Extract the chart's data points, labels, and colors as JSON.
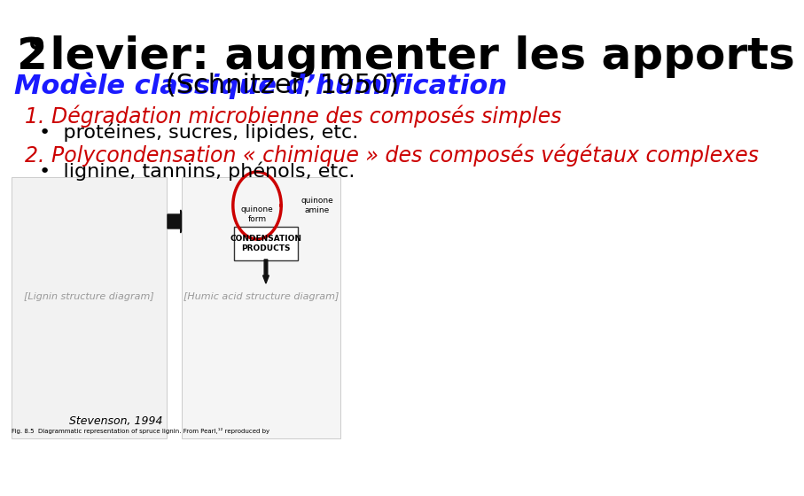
{
  "bg_color": "#ffffff",
  "title_color": "#000000",
  "title_fontsize": 36,
  "title_superscript_fontsize": 18,
  "title_rest": " levier: augmenter les apports",
  "subtitle_bold": "Modèle classique d’humification",
  "subtitle_normal": " (Schnitzer, 1950)",
  "subtitle_fontsize": 22,
  "subtitle_color_bold": "#1a1aff",
  "subtitle_color_normal": "#000000",
  "item1_header": "1. Dégradation microbienne des composés simples",
  "item1_bullet": "•  protéines, sucres, lipides, etc.",
  "item2_header": "2. Polycondensation « chimique » des composés végétaux complexes",
  "item2_bullet": "•  lignine, tannins, phénols, etc.",
  "item_header_color": "#cc0000",
  "item_bullet_color": "#000000",
  "item_fontsize": 17,
  "bullet_fontsize": 16,
  "caption_stevenson": "Stevenson, 1994",
  "caption_fig85": "Fig. 8.5  Diagrammatic representation of spruce lignin. From Pearl,¹² reproduced by",
  "quinone_form": "quinone\nform",
  "quinone_amine": "quinone\namine",
  "condensation_label": "CONDENSATION\nPRODUCTS",
  "arrow_color": "#111111",
  "red_circle_color": "#cc0000"
}
